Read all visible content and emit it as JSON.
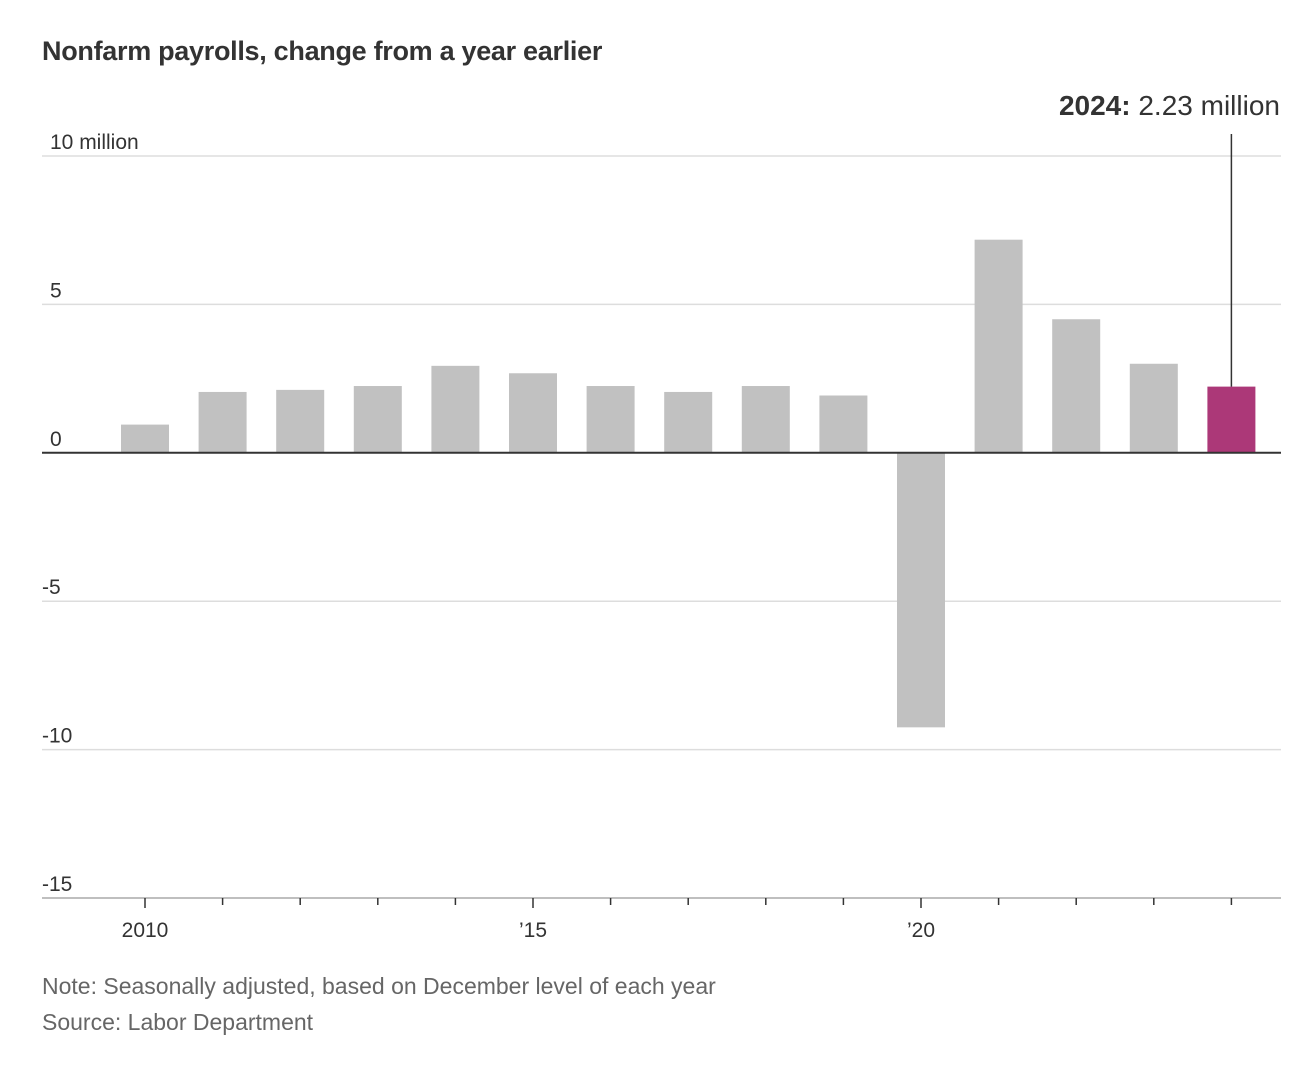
{
  "chart_data": {
    "type": "bar",
    "title": "Nonfarm payrolls, change from a year earlier",
    "unit_label": "10 million",
    "x": [
      2010,
      2011,
      2012,
      2013,
      2014,
      2015,
      2016,
      2017,
      2018,
      2019,
      2020,
      2021,
      2022,
      2023,
      2024
    ],
    "values": [
      0.95,
      2.05,
      2.12,
      2.25,
      2.93,
      2.68,
      2.25,
      2.05,
      2.25,
      1.93,
      -9.25,
      7.18,
      4.5,
      3.0,
      2.23
    ],
    "ylim": [
      -15,
      10
    ],
    "yticks": [
      10,
      5,
      0,
      -5,
      -10,
      -15
    ],
    "ytick_labels": [
      "10 million",
      "5",
      "0",
      "-5",
      "-10",
      "-15"
    ],
    "xtick_labels": [
      {
        "year": 2010,
        "label": "2010"
      },
      {
        "year": 2015,
        "label": "’15"
      },
      {
        "year": 2020,
        "label": "’20"
      }
    ],
    "highlight": {
      "year": 2024,
      "label_bold": "2024:",
      "label_value": "2.23 million"
    },
    "colors": {
      "bar": "#c1c1c1",
      "highlight": "#ac3878",
      "grid": "#dddddd",
      "axis": "#333333"
    },
    "grid": true
  },
  "notes": {
    "note": "Note: Seasonally adjusted, based on December level of each year",
    "source": "Source: Labor Department"
  }
}
